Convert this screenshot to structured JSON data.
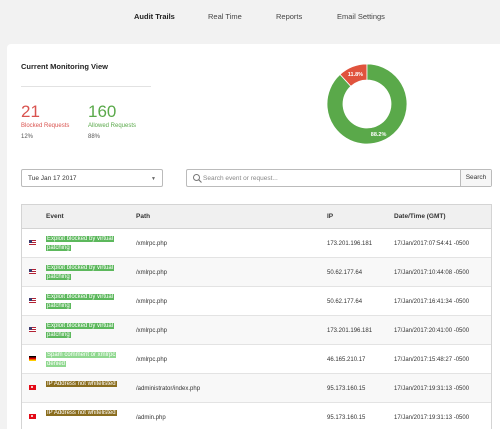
{
  "nav": {
    "tabs": [
      {
        "label": "Audit Trails",
        "active": true
      },
      {
        "label": "Real Time",
        "active": false
      },
      {
        "label": "Reports",
        "active": false
      },
      {
        "label": "Email Settings",
        "active": false
      }
    ]
  },
  "monitoring": {
    "title": "Current Monitoring View",
    "blocked": {
      "count": "21",
      "label": "Blocked Requests",
      "percent": "12%"
    },
    "allowed": {
      "count": "160",
      "label": "Allowed Requests",
      "percent": "88%"
    }
  },
  "chart_data": {
    "type": "pie",
    "labels": [
      "11.8%",
      "88.2%"
    ],
    "values": [
      11.8,
      88.2
    ],
    "colors": [
      "#e0533d",
      "#5aa94a"
    ]
  },
  "filters": {
    "date_value": "Tue Jan 17 2017",
    "search_placeholder": "Search event or request...",
    "search_button": "Search"
  },
  "table": {
    "columns": {
      "event": "Event",
      "path": "Path",
      "ip": "IP",
      "datetime": "Date/Time (GMT)"
    },
    "rows": [
      {
        "flag": "us",
        "event": "Exploit blocked by virtual patching",
        "event_color": "#5cb85c",
        "path": "/xmlrpc.php",
        "ip": "173.201.196.181",
        "datetime": "17/Jan/2017:07:54:41 -0500"
      },
      {
        "flag": "us",
        "event": "Exploit blocked by virtual patching",
        "event_color": "#5cb85c",
        "path": "/xmlrpc.php",
        "ip": "50.62.177.64",
        "datetime": "17/Jan/2017:10:44:08 -0500"
      },
      {
        "flag": "us",
        "event": "Exploit blocked by virtual patching",
        "event_color": "#5cb85c",
        "path": "/xmlrpc.php",
        "ip": "50.62.177.64",
        "datetime": "17/Jan/2017:16:41:34 -0500"
      },
      {
        "flag": "us",
        "event": "Exploit blocked by virtual patching",
        "event_color": "#5cb85c",
        "path": "/xmlrpc.php",
        "ip": "173.201.196.181",
        "datetime": "17/Jan/2017:20:41:00 -0500"
      },
      {
        "flag": "de",
        "event": "Spam comment or xmlrpc denied",
        "event_color": "#8fd88f",
        "path": "/xmlrpc.php",
        "ip": "46.165.210.17",
        "datetime": "17/Jan/2017:15:48:27 -0500"
      },
      {
        "flag": "tr",
        "event": "IP Address not whitelisted",
        "event_color": "#8a6d1e",
        "path": "/administrator/index.php",
        "ip": "95.173.160.15",
        "datetime": "17/Jan/2017:19:31:13 -0500"
      },
      {
        "flag": "tr",
        "event": "IP Address not whitelisted",
        "event_color": "#8a6d1e",
        "path": "/admin.php",
        "ip": "95.173.160.15",
        "datetime": "17/Jan/2017:19:31:13 -0500"
      }
    ]
  }
}
